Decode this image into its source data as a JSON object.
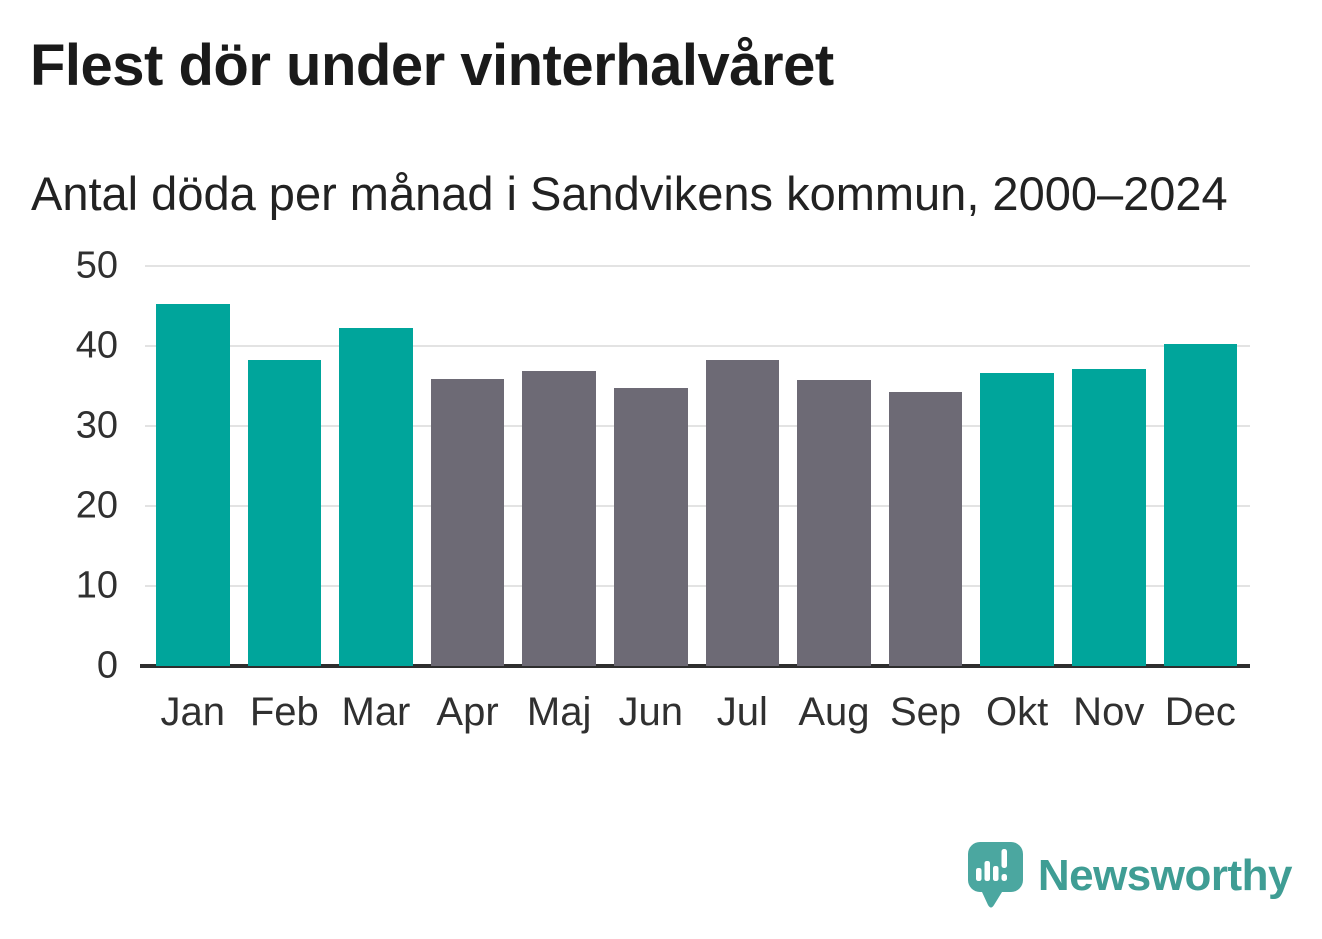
{
  "header": {
    "title": "Flest dör under vinterhalvåret",
    "subtitle": "Antal döda per månad i Sandvikens kommun, 2000–2024"
  },
  "chart_data": {
    "type": "bar",
    "categories": [
      "Jan",
      "Feb",
      "Mar",
      "Apr",
      "Maj",
      "Jun",
      "Jul",
      "Aug",
      "Sep",
      "Okt",
      "Nov",
      "Dec"
    ],
    "values": [
      45.2,
      38.2,
      42.3,
      35.9,
      36.9,
      34.8,
      38.2,
      35.8,
      34.2,
      36.6,
      37.1,
      40.2
    ],
    "bar_seasons": [
      "winter",
      "winter",
      "winter",
      "summer",
      "summer",
      "summer",
      "summer",
      "summer",
      "summer",
      "winter",
      "winter",
      "winter"
    ],
    "bar_palette": {
      "winter": "#00a59b",
      "summer": "#6d6a75"
    },
    "title": "Flest dör under vinterhalvåret",
    "subtitle": "Antal döda per månad i Sandvikens kommun, 2000–2024",
    "xlabel": "",
    "ylabel": "",
    "ylim": [
      0,
      50
    ],
    "yticks": [
      0,
      10,
      20,
      30,
      40,
      50
    ],
    "grid": "horizontal",
    "legend": "none"
  },
  "footer": {
    "brand": "Newsworthy",
    "logo": "bar-chart-speech-bubble-icon"
  },
  "colors": {
    "background": "#ffffff",
    "title_text": "#1a1a1a",
    "axis_text": "#303030",
    "gridline": "#e3e3e3",
    "baseline": "#2e2e2e",
    "bar_winter": "#00a59b",
    "bar_summer": "#6d6a75",
    "logo_mark": "#4ba7a0",
    "logo_text": "#3f9d94"
  }
}
